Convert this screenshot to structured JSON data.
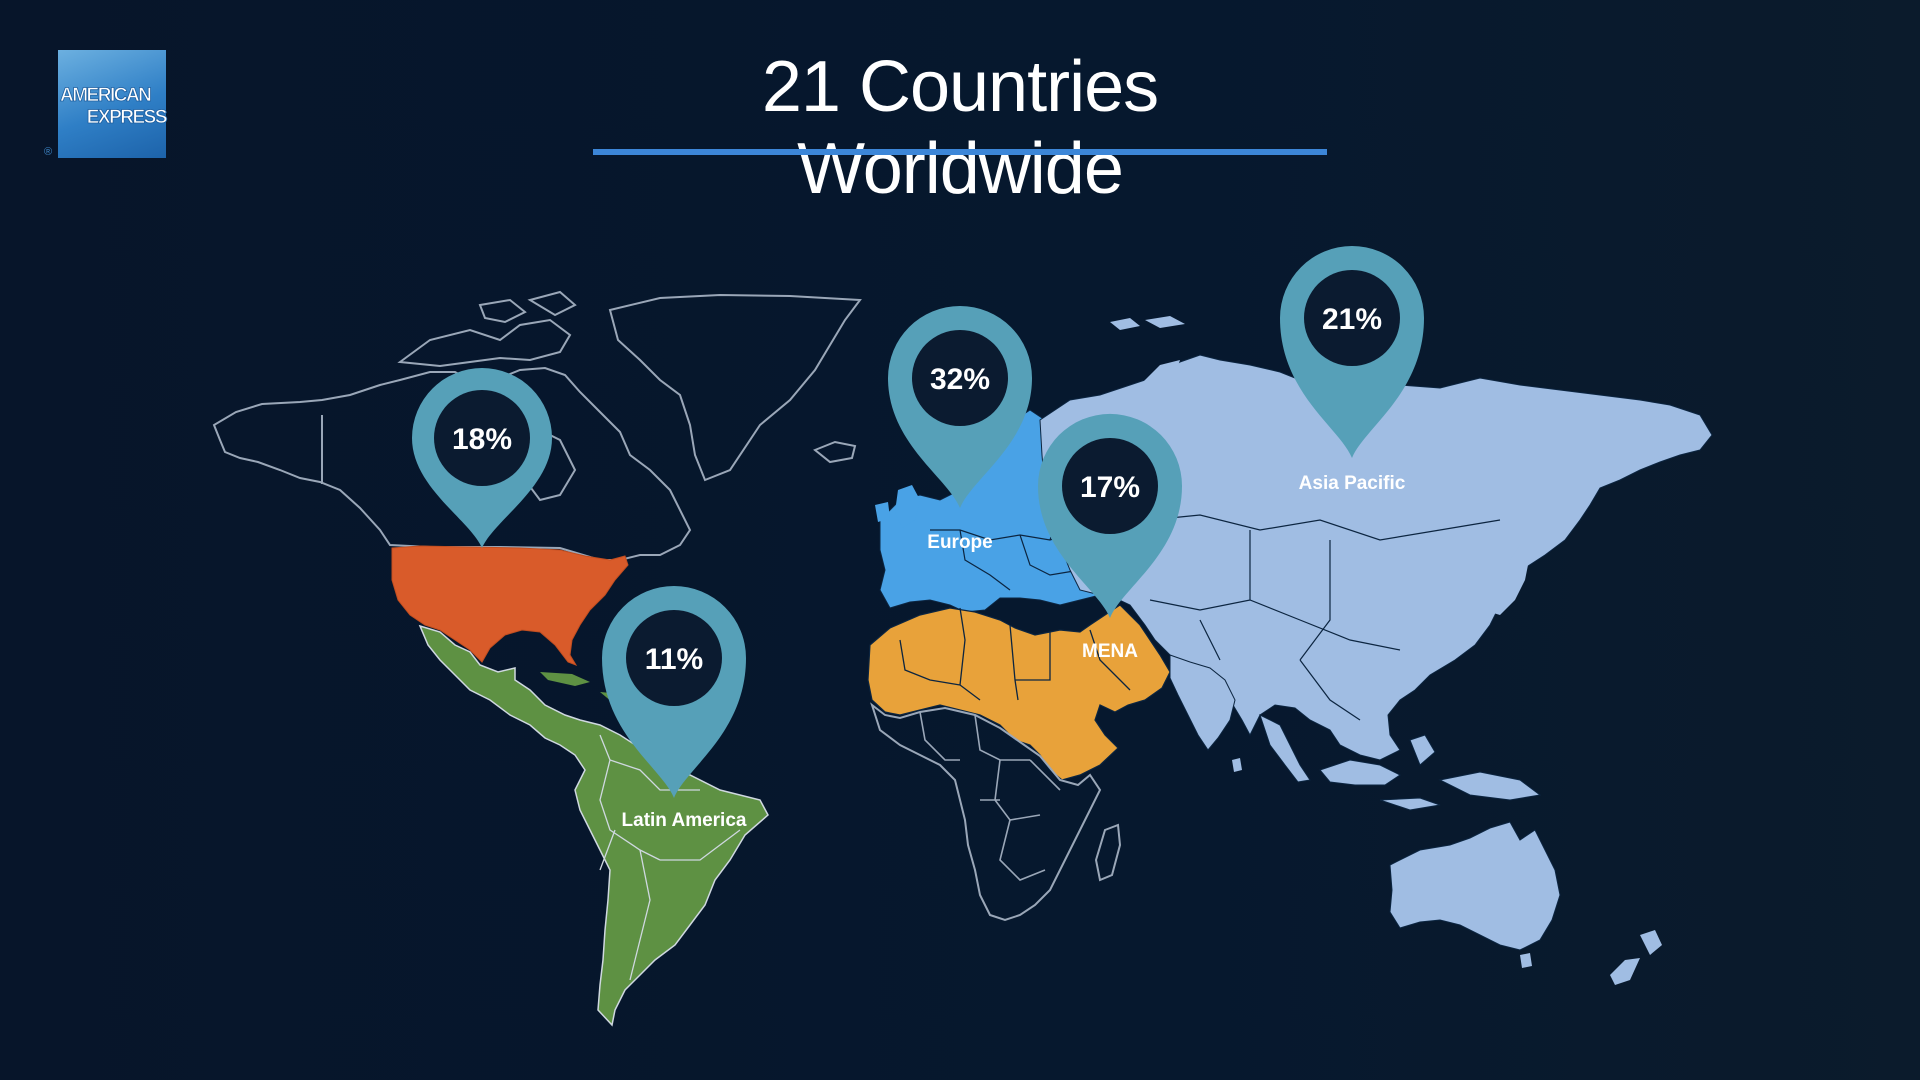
{
  "logo": {
    "line1": "AMERICAN",
    "line2": "EXPRESS",
    "reg": "®"
  },
  "title": "21 Countries Worldwide",
  "colors": {
    "background": "#06182e",
    "accent_rule": "#3c86d8",
    "pin": "#56a0b8",
    "pin_hole": "#0b1b30",
    "outline": "#9aa7b8",
    "north_america": "#d95b2a",
    "latin_america": "#5e9143",
    "europe": "#49a2e6",
    "mena": "#e8a23a",
    "asia_pacific": "#a0bde3"
  },
  "regions": [
    {
      "id": "north-america",
      "percent": "18%",
      "label": ""
    },
    {
      "id": "latin-america",
      "percent": "11%",
      "label": "Latin America"
    },
    {
      "id": "europe",
      "percent": "32%",
      "label": "Europe"
    },
    {
      "id": "mena",
      "percent": "17%",
      "label": "MENA"
    },
    {
      "id": "asia-pacific",
      "percent": "21%",
      "label": "Asia Pacific"
    }
  ]
}
